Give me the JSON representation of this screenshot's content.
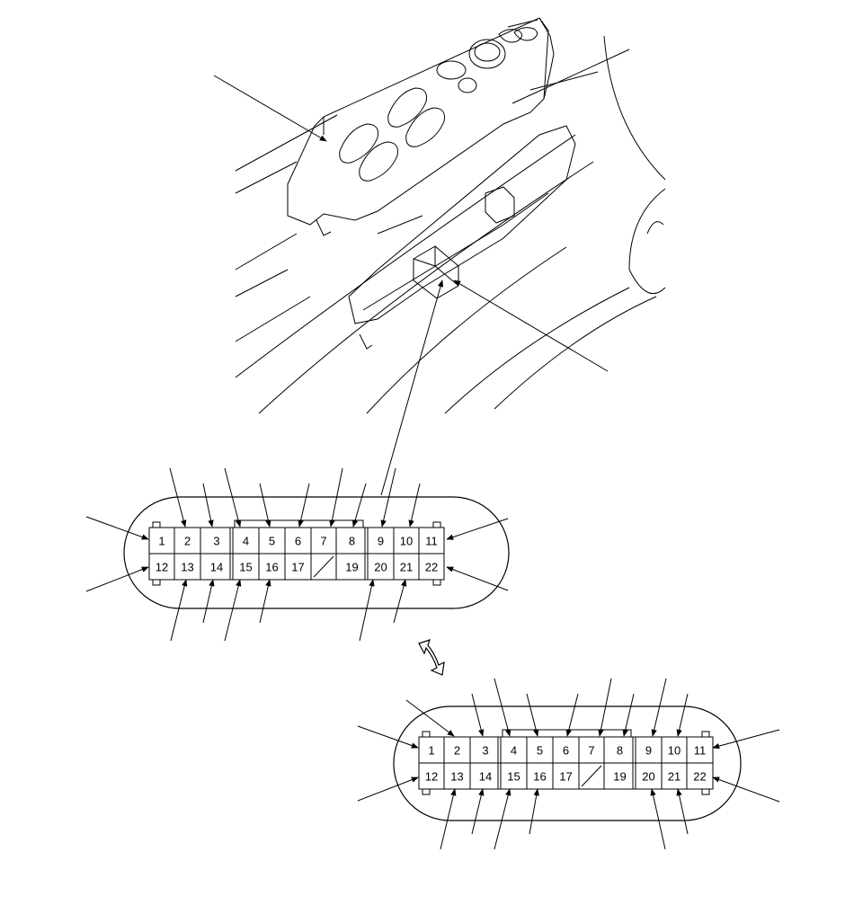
{
  "colors": {
    "ink": "#000000",
    "paper": "#ffffff"
  },
  "illustration": {
    "subject": "door-panel-power-window-switch"
  },
  "connectors": [
    {
      "id": "connector-upper",
      "top_row": [
        "1",
        "2",
        "3",
        "4",
        "5",
        "6",
        "7",
        "8",
        "9",
        "10",
        "11"
      ],
      "bottom_row": [
        "12",
        "13",
        "14",
        "15",
        "16",
        "17",
        "",
        "19",
        "20",
        "21",
        "22"
      ],
      "blank_cavity": 18
    },
    {
      "id": "connector-lower",
      "top_row": [
        "1",
        "2",
        "3",
        "4",
        "5",
        "6",
        "7",
        "8",
        "9",
        "10",
        "11"
      ],
      "bottom_row": [
        "12",
        "13",
        "14",
        "15",
        "16",
        "17",
        "",
        "19",
        "20",
        "21",
        "22"
      ],
      "blank_cavity": 18
    }
  ],
  "swap_icon": "double-headed-arrow-icon"
}
